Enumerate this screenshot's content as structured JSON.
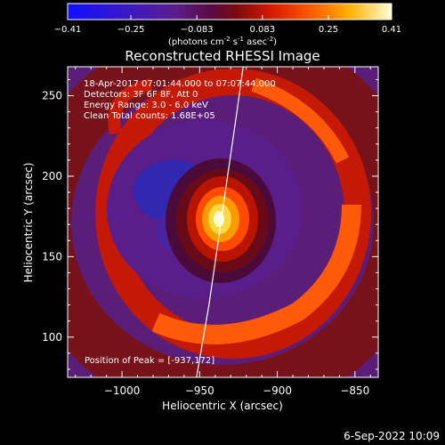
{
  "colorbar": {
    "ticks": [
      "-0.41",
      "-0.25",
      "-0.083",
      "0.083",
      "0.25",
      "0.41"
    ],
    "tick_values": [
      -0.41,
      -0.25,
      -0.083,
      0.083,
      0.25,
      0.41
    ],
    "range": [
      -0.41,
      0.41
    ],
    "units_main": "(photons cm",
    "units_exp1": "-2",
    "units_mid": " s",
    "units_exp2": "-1",
    "units_mid2": " asec",
    "units_exp3": "-2",
    "units_end": ")"
  },
  "chart_data": {
    "type": "heatmap",
    "title": "Reconstructed RHESSI Image",
    "xlabel": "Heliocentric X (arcsec)",
    "ylabel": "Heliocentric Y (arcsec)",
    "xlim": [
      -1035,
      -835
    ],
    "ylim": [
      75,
      268
    ],
    "x_ticks": [
      -1000,
      -950,
      -900,
      -850
    ],
    "x_tick_labels": [
      "−1000",
      "−950",
      "−900",
      "−850"
    ],
    "y_ticks": [
      100,
      150,
      200,
      250
    ],
    "y_tick_labels": [
      "100",
      "150",
      "200",
      "250"
    ],
    "info_lines": [
      "18-Apr-2017 07:01:44.000 to 07:07:44.000",
      "Detectors: 3F 6F 8F, Att 0",
      "Energy Range: 3.0 - 6.0 keV",
      "Clean    Total counts: 1.68E+05"
    ],
    "peak_label": "Position of Peak = [-937,172]",
    "peak": [
      -937,
      172
    ],
    "limb_curve": [
      [
        -952,
        75
      ],
      [
        -944,
        120
      ],
      [
        -938,
        160
      ],
      [
        -932,
        200
      ],
      [
        -926,
        240
      ],
      [
        -922,
        268
      ]
    ]
  },
  "footer": {
    "timestamp": "6-Sep-2022 10:09"
  }
}
